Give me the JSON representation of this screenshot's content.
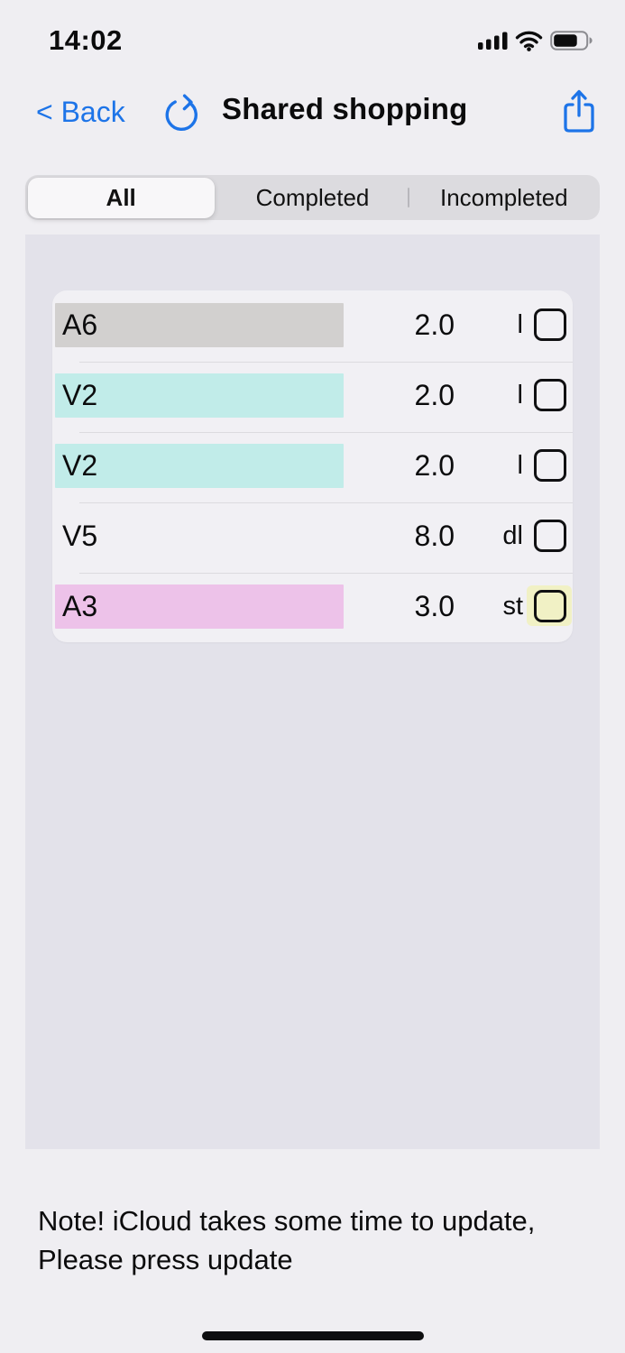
{
  "status_bar": {
    "time": "14:02",
    "battery_level_percent": 68
  },
  "nav": {
    "back_label": "< Back",
    "title": "Shared shopping"
  },
  "segments": {
    "items": [
      {
        "label": "All",
        "selected": true
      },
      {
        "label": "Completed",
        "selected": false
      },
      {
        "label": "Incompleted",
        "selected": false
      }
    ]
  },
  "list": {
    "items": [
      {
        "name": "A6",
        "qty": "2.0",
        "unit": "l",
        "highlight": "#d2d0cf",
        "checkbox_bg": null,
        "checked": false
      },
      {
        "name": "V2",
        "qty": "2.0",
        "unit": "l",
        "highlight": "#c1ece9",
        "checkbox_bg": null,
        "checked": false
      },
      {
        "name": "V2",
        "qty": "2.0",
        "unit": "l",
        "highlight": "#c1ece9",
        "checkbox_bg": null,
        "checked": false
      },
      {
        "name": "V5",
        "qty": "8.0",
        "unit": "dl",
        "highlight": null,
        "checkbox_bg": null,
        "checked": false
      },
      {
        "name": "A3",
        "qty": "3.0",
        "unit": "st",
        "highlight": "#edc2e9",
        "checkbox_bg": "#f1f1c5",
        "checked": false
      }
    ]
  },
  "note": "Note! iCloud takes some time to update,\nPlease press update",
  "icons": {
    "back": "chevron-back",
    "refresh": "refresh-icon",
    "share": "share-icon",
    "signal": "cellular-signal-icon",
    "wifi": "wifi-icon",
    "battery": "battery-icon"
  },
  "colors": {
    "accent_blue": "#1d74e8",
    "page_bg": "#efeef2",
    "content_bg": "#e3e2ea",
    "card_bg": "#f1f0f4",
    "segment_bg": "#dcdbdf",
    "highlight_gray": "#d2d0cf",
    "highlight_cyan": "#c1ece9",
    "highlight_pink": "#edc2e9",
    "highlight_yellow": "#f1f1c5"
  }
}
